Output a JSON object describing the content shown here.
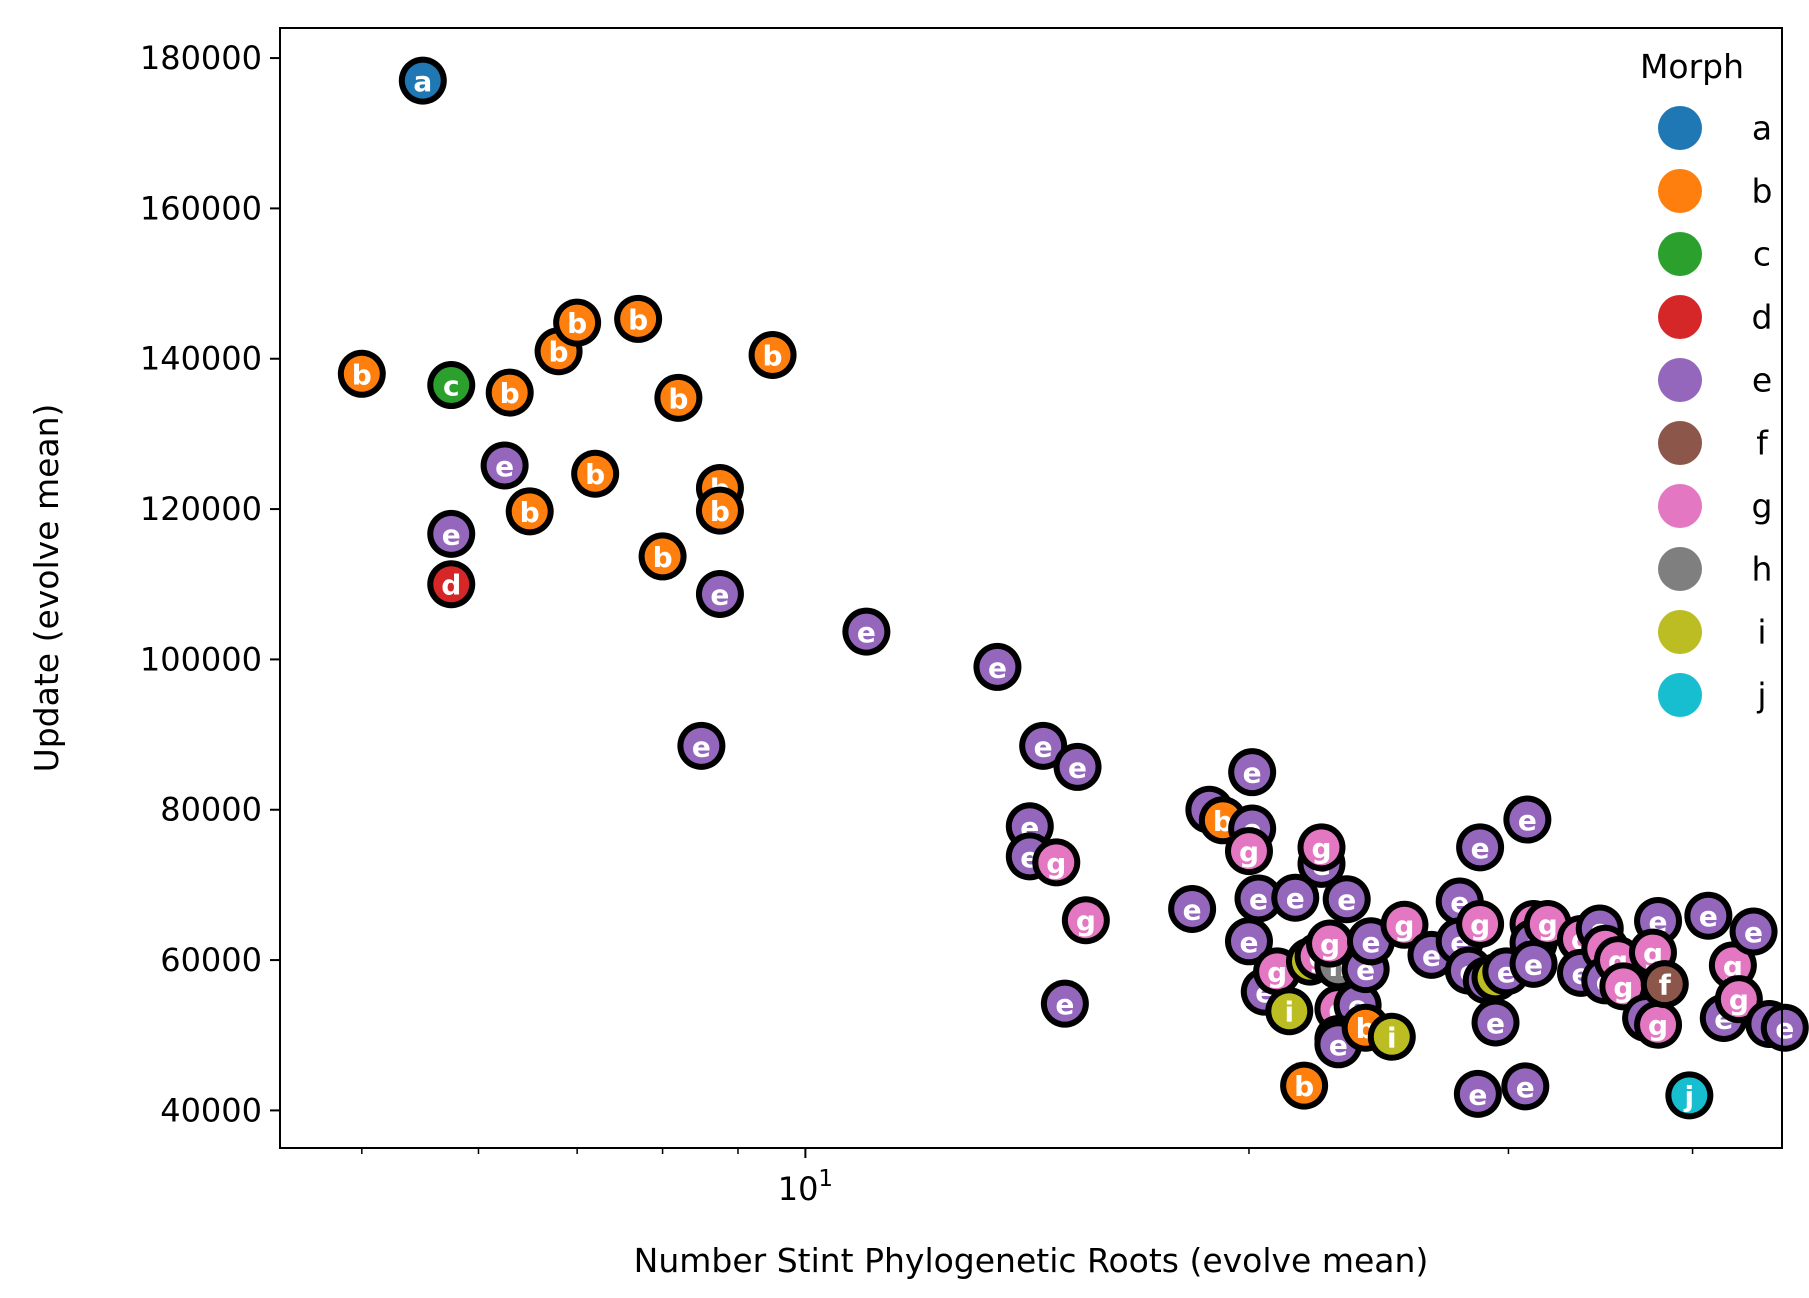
{
  "chart_data": {
    "type": "scatter",
    "title": "",
    "xlabel": "Number Stint Phylogenetic Roots (evolve mean)",
    "ylabel": "Update (evolve mean)",
    "xscale": "log",
    "xlim": [
      4.4,
      46
    ],
    "ylim": [
      35000,
      184000
    ],
    "yticks": [
      40000,
      60000,
      80000,
      100000,
      120000,
      140000,
      160000,
      180000
    ],
    "ytick_labels": [
      "40000",
      "60000",
      "80000",
      "100000",
      "120000",
      "140000",
      "160000",
      "180000"
    ],
    "xticks_major": [
      10
    ],
    "xtick_major_labels": [
      "10"
    ],
    "xticks_minor": [
      5,
      6,
      7,
      8,
      9,
      20,
      30,
      40
    ],
    "grid": false,
    "legend": {
      "title": "Morph",
      "placement": "top-right",
      "entries": [
        {
          "label": "a",
          "color": "#1f77b4"
        },
        {
          "label": "b",
          "color": "#ff7f0e"
        },
        {
          "label": "c",
          "color": "#2ca02c"
        },
        {
          "label": "d",
          "color": "#d62728"
        },
        {
          "label": "e",
          "color": "#9467bd"
        },
        {
          "label": "f",
          "color": "#8c564b"
        },
        {
          "label": "g",
          "color": "#e377c2"
        },
        {
          "label": "h",
          "color": "#7f7f7f"
        },
        {
          "label": "i",
          "color": "#bcbd22"
        },
        {
          "label": "j",
          "color": "#17becf"
        }
      ]
    },
    "points": [
      {
        "m": "a",
        "x": 5.5,
        "y": 177000
      },
      {
        "m": "b",
        "x": 5.0,
        "y": 138000
      },
      {
        "m": "b",
        "x": 6.3,
        "y": 135500
      },
      {
        "m": "b",
        "x": 6.8,
        "y": 141000
      },
      {
        "m": "b",
        "x": 7.0,
        "y": 144800
      },
      {
        "m": "b",
        "x": 7.7,
        "y": 145300
      },
      {
        "m": "b",
        "x": 8.2,
        "y": 134800
      },
      {
        "m": "b",
        "x": 9.5,
        "y": 140500
      },
      {
        "m": "b",
        "x": 6.5,
        "y": 119700
      },
      {
        "m": "b",
        "x": 7.2,
        "y": 124700
      },
      {
        "m": "b",
        "x": 8.75,
        "y": 122800
      },
      {
        "m": "b",
        "x": 8.75,
        "y": 119800
      },
      {
        "m": "b",
        "x": 8.0,
        "y": 113700
      },
      {
        "m": "c",
        "x": 5.75,
        "y": 136500
      },
      {
        "m": "d",
        "x": 5.75,
        "y": 110000
      },
      {
        "m": "e",
        "x": 6.25,
        "y": 125800
      },
      {
        "m": "e",
        "x": 5.75,
        "y": 116700
      },
      {
        "m": "e",
        "x": 8.75,
        "y": 108700
      },
      {
        "m": "e",
        "x": 8.5,
        "y": 88500
      },
      {
        "m": "e",
        "x": 11.0,
        "y": 103700
      },
      {
        "m": "e",
        "x": 13.5,
        "y": 99000
      },
      {
        "m": "e",
        "x": 14.5,
        "y": 88500
      },
      {
        "m": "e",
        "x": 15.3,
        "y": 85700
      },
      {
        "m": "e",
        "x": 14.2,
        "y": 77800
      },
      {
        "m": "e",
        "x": 14.2,
        "y": 73800
      },
      {
        "m": "g",
        "x": 14.8,
        "y": 73000
      },
      {
        "m": "g",
        "x": 15.5,
        "y": 65300
      },
      {
        "m": "e",
        "x": 15.0,
        "y": 54200
      },
      {
        "m": "e",
        "x": 18.3,
        "y": 66800
      },
      {
        "m": "e",
        "x": 18.8,
        "y": 80000
      },
      {
        "m": "b",
        "x": 19.2,
        "y": 78600
      },
      {
        "m": "e",
        "x": 20.1,
        "y": 85000
      },
      {
        "m": "e",
        "x": 20.1,
        "y": 77500
      },
      {
        "m": "g",
        "x": 20.0,
        "y": 74500
      },
      {
        "m": "e",
        "x": 20.3,
        "y": 68200
      },
      {
        "m": "e",
        "x": 20.0,
        "y": 62500
      },
      {
        "m": "e",
        "x": 20.5,
        "y": 55800
      },
      {
        "m": "g",
        "x": 20.9,
        "y": 58500
      },
      {
        "m": "e",
        "x": 21.5,
        "y": 68300
      },
      {
        "m": "e",
        "x": 22.4,
        "y": 72800
      },
      {
        "m": "g",
        "x": 22.4,
        "y": 75000
      },
      {
        "m": "e",
        "x": 23.3,
        "y": 68100
      },
      {
        "m": "i",
        "x": 22.0,
        "y": 59800
      },
      {
        "m": "g",
        "x": 22.3,
        "y": 60500
      },
      {
        "m": "h",
        "x": 23.0,
        "y": 59300
      },
      {
        "m": "g",
        "x": 22.7,
        "y": 62200
      },
      {
        "m": "i",
        "x": 21.3,
        "y": 53200
      },
      {
        "m": "g",
        "x": 23.0,
        "y": 53500
      },
      {
        "m": "e",
        "x": 23.7,
        "y": 54000
      },
      {
        "m": "h",
        "x": 23.0,
        "y": 49500
      },
      {
        "m": "e",
        "x": 23.0,
        "y": 48800
      },
      {
        "m": "b",
        "x": 24.0,
        "y": 51000
      },
      {
        "m": "i",
        "x": 25.0,
        "y": 49800
      },
      {
        "m": "b",
        "x": 21.8,
        "y": 43300
      },
      {
        "m": "e",
        "x": 24.0,
        "y": 58800
      },
      {
        "m": "e",
        "x": 24.2,
        "y": 62500
      },
      {
        "m": "g",
        "x": 25.5,
        "y": 64700
      },
      {
        "m": "e",
        "x": 26.6,
        "y": 60700
      },
      {
        "m": "e",
        "x": 27.8,
        "y": 67800
      },
      {
        "m": "e",
        "x": 27.8,
        "y": 62500
      },
      {
        "m": "g",
        "x": 28.7,
        "y": 64800
      },
      {
        "m": "e",
        "x": 28.7,
        "y": 75000
      },
      {
        "m": "e",
        "x": 28.2,
        "y": 58600
      },
      {
        "m": "e",
        "x": 29.0,
        "y": 57300
      },
      {
        "m": "i",
        "x": 29.4,
        "y": 57700
      },
      {
        "m": "e",
        "x": 29.9,
        "y": 58500
      },
      {
        "m": "e",
        "x": 29.4,
        "y": 51700
      },
      {
        "m": "e",
        "x": 28.6,
        "y": 42200
      },
      {
        "m": "e",
        "x": 30.8,
        "y": 43200
      },
      {
        "m": "e",
        "x": 30.9,
        "y": 78700
      },
      {
        "m": "g",
        "x": 31.2,
        "y": 64800
      },
      {
        "m": "e",
        "x": 31.2,
        "y": 62300
      },
      {
        "m": "e",
        "x": 31.2,
        "y": 59500
      },
      {
        "m": "g",
        "x": 31.9,
        "y": 64800
      },
      {
        "m": "g",
        "x": 33.6,
        "y": 62800
      },
      {
        "m": "e",
        "x": 33.6,
        "y": 58300
      },
      {
        "m": "e",
        "x": 34.6,
        "y": 64200
      },
      {
        "m": "g",
        "x": 34.9,
        "y": 61500
      },
      {
        "m": "e",
        "x": 34.9,
        "y": 57300
      },
      {
        "m": "g",
        "x": 35.6,
        "y": 60000
      },
      {
        "m": "g",
        "x": 35.9,
        "y": 56500
      },
      {
        "m": "e",
        "x": 37.9,
        "y": 65200
      },
      {
        "m": "g",
        "x": 37.6,
        "y": 61000
      },
      {
        "m": "e",
        "x": 37.2,
        "y": 52300
      },
      {
        "m": "g",
        "x": 37.9,
        "y": 51400
      },
      {
        "m": "f",
        "x": 38.3,
        "y": 56800
      },
      {
        "m": "j",
        "x": 39.8,
        "y": 42000
      },
      {
        "m": "e",
        "x": 41.0,
        "y": 65900
      },
      {
        "m": "g",
        "x": 42.6,
        "y": 59300
      },
      {
        "m": "e",
        "x": 42.0,
        "y": 52300
      },
      {
        "m": "g",
        "x": 43.0,
        "y": 54800
      },
      {
        "m": "e",
        "x": 44.0,
        "y": 63800
      },
      {
        "m": "e",
        "x": 45.1,
        "y": 51500
      },
      {
        "m": "e",
        "x": 46.2,
        "y": 51000
      }
    ]
  }
}
